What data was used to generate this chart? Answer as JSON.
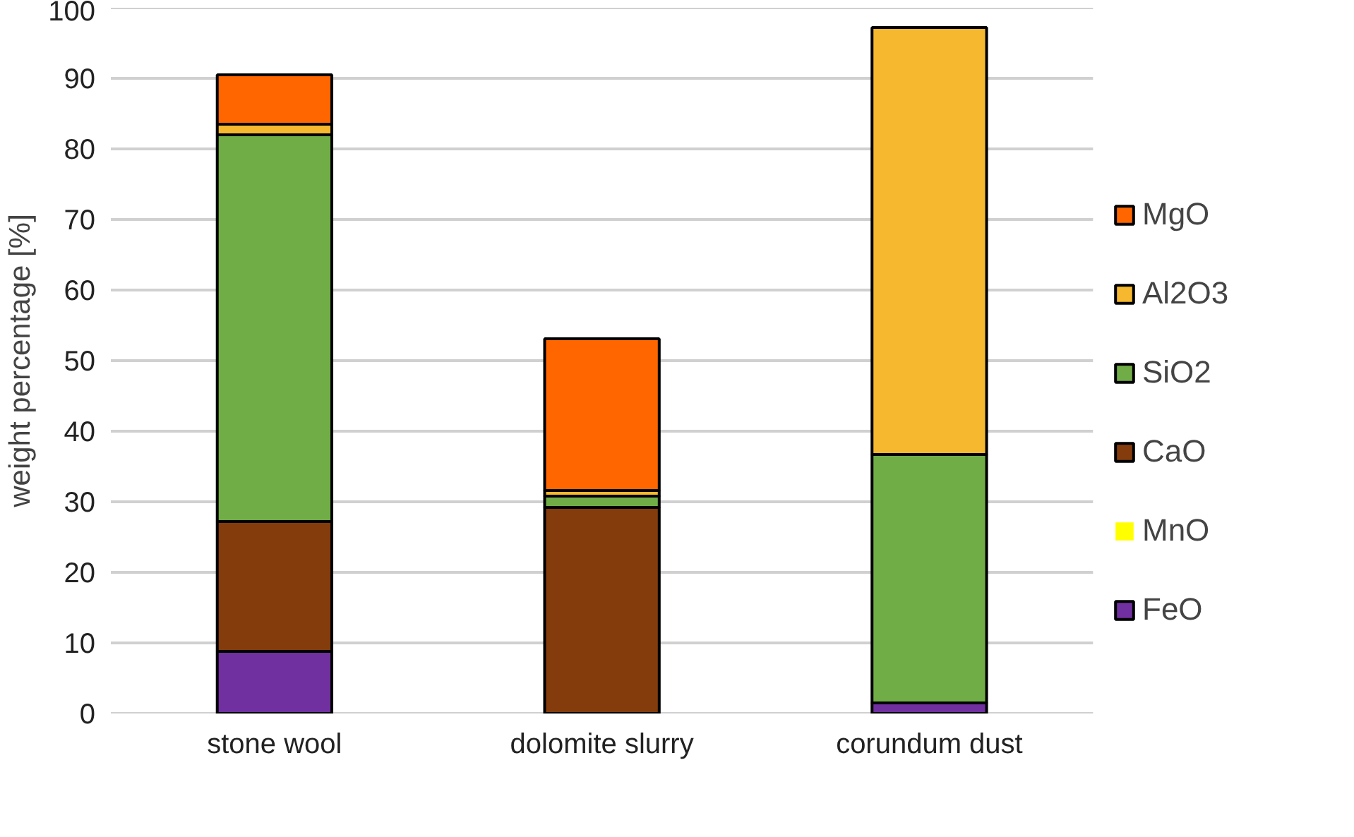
{
  "chart_data": {
    "type": "bar",
    "stacked": true,
    "ylabel": "weight percentage [%]",
    "categories": [
      "stone wool",
      "dolomite slurry",
      "corundum dust"
    ],
    "series": [
      {
        "name": "FeO",
        "color": "#7030a0",
        "values": [
          8.8,
          0,
          1.5
        ]
      },
      {
        "name": "MnO",
        "color": "#ffff00",
        "values": [
          0,
          0,
          0
        ]
      },
      {
        "name": "CaO",
        "color": "#843c0c",
        "values": [
          18.4,
          29.2,
          null
        ]
      },
      {
        "name": "SiO2",
        "color": "#70ad47",
        "values": [
          54.8,
          1.6,
          35.2
        ]
      },
      {
        "name": "Al2O3",
        "color": "#f5b82e",
        "values": [
          1.5,
          0.8,
          60.5
        ]
      },
      {
        "name": "MgO",
        "color": "#ff6600",
        "values": [
          7.0,
          21.5,
          0
        ]
      }
    ],
    "ylim": [
      0,
      100
    ],
    "yticks": [
      0,
      10,
      20,
      30,
      40,
      50,
      60,
      70,
      80,
      90,
      100
    ],
    "grid": "y",
    "legend": "right"
  }
}
